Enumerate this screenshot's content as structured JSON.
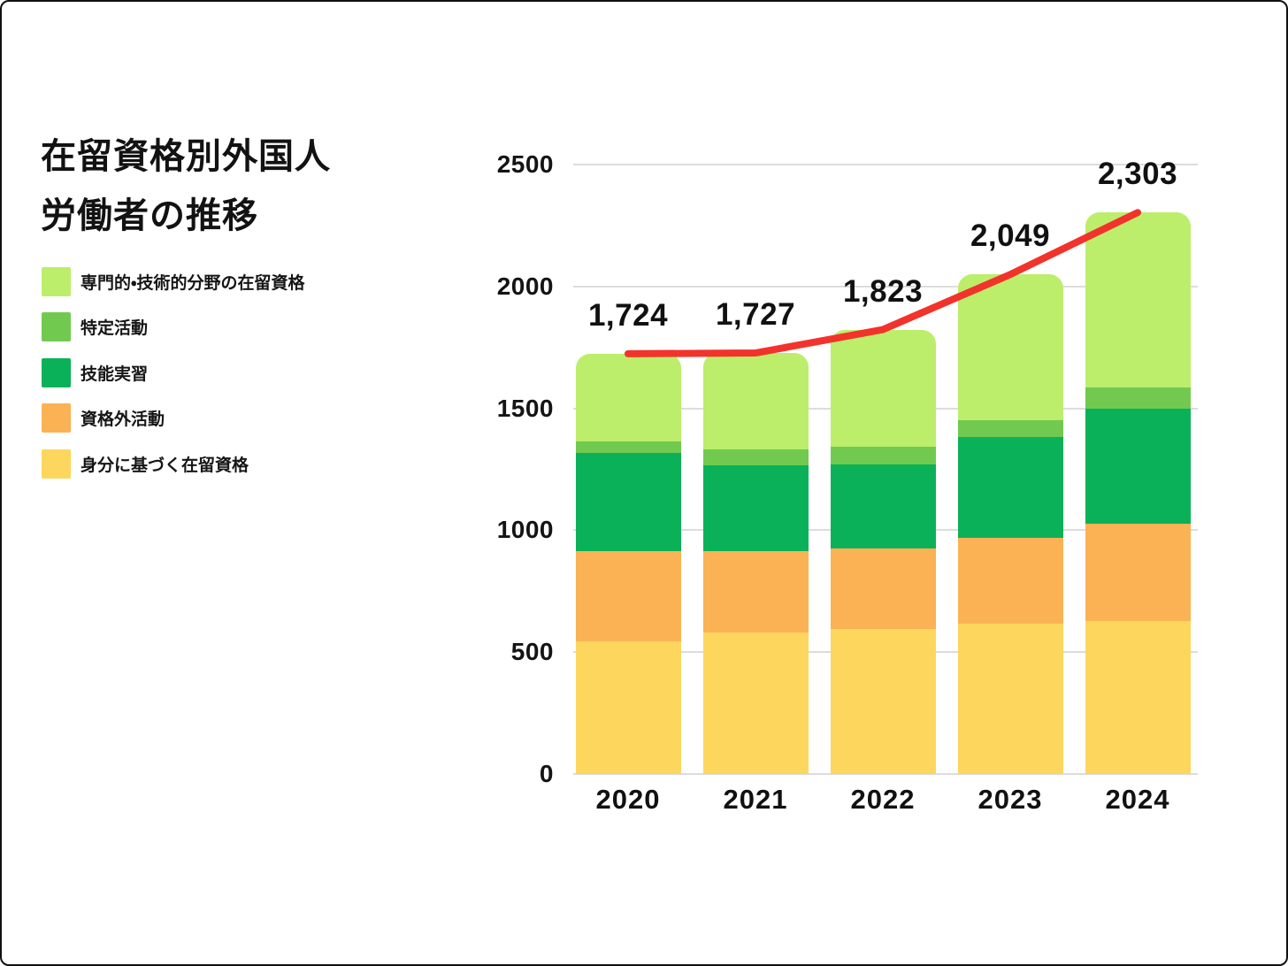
{
  "title": {
    "line1": "在留資格別外国人",
    "line2": "労働者の推移"
  },
  "legend": {
    "items": [
      {
        "label": "専門的・技術的分野の在留資格",
        "color": "#bcee6c"
      },
      {
        "label": "特定活動",
        "color": "#71ca4f"
      },
      {
        "label": "技能実習",
        "color": "#0ab158"
      },
      {
        "label": "資格外活動",
        "color": "#fbb254"
      },
      {
        "label": "身分に基づく在留資格",
        "color": "#fdd65e"
      }
    ]
  },
  "chart_data": {
    "type": "bar",
    "stacked": true,
    "title": "在留資格別外国人労働者の推移",
    "categories": [
      "2020",
      "2021",
      "2022",
      "2023",
      "2024"
    ],
    "series": [
      {
        "name": "身分に基づく在留資格",
        "color": "#fdd65e",
        "values": [
          546,
          580,
          595,
          616,
          629
        ]
      },
      {
        "name": "資格外活動",
        "color": "#fbb254",
        "values": [
          370,
          335,
          331,
          353,
          398
        ]
      },
      {
        "name": "技能実習",
        "color": "#0ab158",
        "values": [
          402,
          352,
          343,
          412,
          471
        ]
      },
      {
        "name": "特定活動",
        "color": "#71ca4f",
        "values": [
          46,
          66,
          74,
          72,
          86
        ]
      },
      {
        "name": "専門的・技術的分野の在留資格",
        "color": "#bcee6c",
        "values": [
          360,
          394,
          480,
          596,
          719
        ]
      }
    ],
    "totals": [
      1724,
      1727,
      1823,
      2049,
      2303
    ],
    "total_labels": [
      "1,724",
      "1,727",
      "1,823",
      "2,049",
      "2,303"
    ],
    "trend_line": {
      "type": "line",
      "color": "#f2332b",
      "values": [
        1724,
        1727,
        1823,
        2049,
        2303
      ]
    },
    "y_axis": {
      "ticks": [
        0,
        500,
        1000,
        1500,
        2000,
        2500
      ],
      "range": [
        0,
        2500
      ]
    },
    "grid": true,
    "gridline_color": "#dcdcdc",
    "legend_position": "left"
  }
}
